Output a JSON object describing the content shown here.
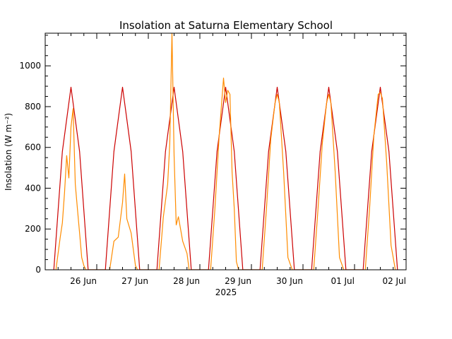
{
  "chart_data": {
    "type": "line",
    "title": "Insolation at Saturna Elementary School",
    "ylabel": "Insolation (W m⁻²)",
    "xlabel": "2025",
    "ylim": [
      0,
      1160
    ],
    "xlim": [
      "2025-06-25T00:00",
      "2025-07-02T00:00"
    ],
    "grid": false,
    "y_ticks": [
      0,
      200,
      400,
      600,
      800,
      1000
    ],
    "x_ticks": [
      {
        "date": "2025-06-26T00:00",
        "label": "26 Jun"
      },
      {
        "date": "2025-06-27T00:00",
        "label": "27 Jun"
      },
      {
        "date": "2025-06-28T00:00",
        "label": "28 Jun"
      },
      {
        "date": "2025-06-29T00:00",
        "label": "29 Jun"
      },
      {
        "date": "2025-06-30T00:00",
        "label": "30 Jun"
      },
      {
        "date": "2025-07-01T00:00",
        "label": "01 Jul"
      },
      {
        "date": "2025-07-02T00:00",
        "label": "02 Jul"
      }
    ],
    "series": [
      {
        "key": "clear_sky",
        "color": "#cc0000",
        "x": [
          "2025-06-25T04:00",
          "2025-06-25T08:00",
          "2025-06-25T12:00",
          "2025-06-25T16:00",
          "2025-06-25T20:00",
          "2025-06-26T04:00",
          "2025-06-26T08:00",
          "2025-06-26T12:00",
          "2025-06-26T16:00",
          "2025-06-26T20:00",
          "2025-06-27T04:00",
          "2025-06-27T08:00",
          "2025-06-27T12:00",
          "2025-06-27T16:00",
          "2025-06-27T20:00",
          "2025-06-28T04:00",
          "2025-06-28T08:00",
          "2025-06-28T12:00",
          "2025-06-28T16:00",
          "2025-06-28T20:00",
          "2025-06-29T04:00",
          "2025-06-29T08:00",
          "2025-06-29T12:00",
          "2025-06-29T16:00",
          "2025-06-29T20:00",
          "2025-06-30T04:00",
          "2025-06-30T08:00",
          "2025-06-30T12:00",
          "2025-06-30T16:00",
          "2025-06-30T20:00",
          "2025-07-01T04:00",
          "2025-07-01T08:00",
          "2025-07-01T12:00",
          "2025-07-01T16:00",
          "2025-07-01T20:00"
        ],
        "values": [
          0,
          580,
          895,
          580,
          0,
          0,
          580,
          895,
          580,
          0,
          0,
          580,
          895,
          580,
          0,
          0,
          580,
          895,
          580,
          0,
          0,
          580,
          895,
          580,
          0,
          0,
          580,
          895,
          580,
          0,
          0,
          580,
          895,
          580,
          0
        ]
      },
      {
        "key": "measured",
        "color": "#ff8c00",
        "x": [
          "2025-06-25T05:00",
          "2025-06-25T07:00",
          "2025-06-25T08:00",
          "2025-06-25T09:00",
          "2025-06-25T10:00",
          "2025-06-25T11:00",
          "2025-06-25T12:00",
          "2025-06-25T13:00",
          "2025-06-25T14:00",
          "2025-06-25T15:00",
          "2025-06-25T16:00",
          "2025-06-25T17:00",
          "2025-06-25T18:00",
          "2025-06-25T19:00",
          "2025-06-26T06:00",
          "2025-06-26T08:00",
          "2025-06-26T10:00",
          "2025-06-26T12:00",
          "2025-06-26T13:00",
          "2025-06-26T14:00",
          "2025-06-26T16:00",
          "2025-06-26T18:00",
          "2025-06-26T19:00",
          "2025-06-27T05:00",
          "2025-06-27T07:00",
          "2025-06-27T09:00",
          "2025-06-27T10:00",
          "2025-06-27T11:00",
          "2025-06-27T12:00",
          "2025-06-27T13:00",
          "2025-06-27T14:00",
          "2025-06-27T16:00",
          "2025-06-27T18:00",
          "2025-06-27T19:00",
          "2025-06-28T05:00",
          "2025-06-28T07:00",
          "2025-06-28T09:00",
          "2025-06-28T11:00",
          "2025-06-28T12:00",
          "2025-06-28T13:00",
          "2025-06-28T14:00",
          "2025-06-28T15:00",
          "2025-06-28T16:00",
          "2025-06-28T17:00",
          "2025-06-28T18:00",
          "2025-06-28T19:00",
          "2025-06-29T05:00",
          "2025-06-29T07:00",
          "2025-06-29T09:00",
          "2025-06-29T11:00",
          "2025-06-29T12:00",
          "2025-06-29T13:00",
          "2025-06-29T15:00",
          "2025-06-29T17:00",
          "2025-06-29T19:00",
          "2025-06-30T05:00",
          "2025-06-30T07:00",
          "2025-06-30T09:00",
          "2025-06-30T11:00",
          "2025-06-30T12:00",
          "2025-06-30T13:00",
          "2025-06-30T15:00",
          "2025-06-30T17:00",
          "2025-06-30T19:00",
          "2025-07-01T05:00",
          "2025-07-01T07:00",
          "2025-07-01T09:00",
          "2025-07-01T11:00",
          "2025-07-01T12:00",
          "2025-07-01T13:00",
          "2025-07-01T15:00",
          "2025-07-01T17:00",
          "2025-07-01T19:00"
        ],
        "values": [
          0,
          160,
          230,
          380,
          560,
          450,
          700,
          790,
          420,
          300,
          180,
          60,
          20,
          0,
          0,
          140,
          160,
          330,
          470,
          250,
          180,
          20,
          0,
          0,
          260,
          420,
          620,
          1160,
          560,
          220,
          260,
          140,
          80,
          0,
          0,
          300,
          660,
          940,
          820,
          880,
          860,
          480,
          300,
          40,
          0,
          0,
          0,
          300,
          640,
          820,
          860,
          820,
          480,
          60,
          0,
          0,
          300,
          620,
          820,
          860,
          820,
          480,
          60,
          0,
          0,
          300,
          660,
          860,
          870,
          840,
          520,
          120,
          0
        ]
      }
    ]
  }
}
